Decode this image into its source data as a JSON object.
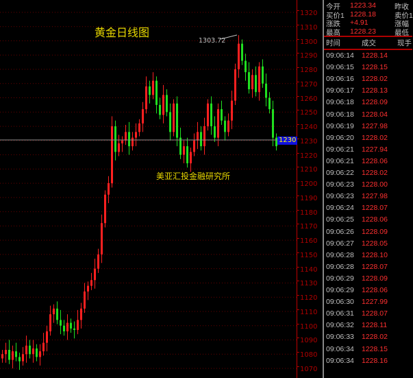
{
  "chart_data": {
    "type": "candlestick",
    "title": "黄金日线图",
    "watermark": "美亚汇投金融研究所",
    "annotation": "1303.72",
    "y_ticks": [
      1320,
      1310,
      1300,
      1290,
      1280,
      1270,
      1260,
      1250,
      1240,
      1230,
      1220,
      1210,
      1200,
      1190,
      1180,
      1170,
      1160,
      1150,
      1140,
      1130,
      1120,
      1110,
      1100,
      1090,
      1080,
      1070
    ],
    "current_price_label": "1230",
    "ylim": [
      1063,
      1328
    ],
    "grid": "horizontal dotted",
    "up_color": "#ff2020",
    "down_color": "#20e020",
    "closes": [
      1080,
      1083,
      1076,
      1082,
      1078,
      1075,
      1080,
      1086,
      1080,
      1084,
      1078,
      1082,
      1088,
      1096,
      1108,
      1112,
      1104,
      1100,
      1096,
      1102,
      1098,
      1097,
      1104,
      1112,
      1124,
      1128,
      1132,
      1140,
      1150,
      1172,
      1192,
      1200,
      1240,
      1222,
      1228,
      1230,
      1236,
      1226,
      1232,
      1236,
      1242,
      1252,
      1268,
      1262,
      1272,
      1255,
      1248,
      1262,
      1250,
      1236,
      1256,
      1232,
      1220,
      1226,
      1214,
      1222,
      1230,
      1236,
      1226,
      1240,
      1256,
      1240,
      1232,
      1252,
      1244,
      1236,
      1244,
      1258,
      1280,
      1298,
      1286,
      1278,
      1266,
      1276,
      1264,
      1282,
      1270,
      1260,
      1252,
      1232,
      1226
    ]
  },
  "quote": [
    {
      "label": "今开",
      "value": "1223.34",
      "label2": "昨收"
    },
    {
      "label": "买价1",
      "value": "1228.18",
      "label2": "卖价1"
    },
    {
      "label": "涨跌",
      "value": "+4.91",
      "label2": "涨幅"
    },
    {
      "label": "最高",
      "value": "1228.23",
      "label2": "最低"
    }
  ],
  "ticks_header": {
    "time": "时间",
    "price": "成交",
    "vol": "现手"
  },
  "ticks": [
    [
      "09:06:14",
      "1228.14"
    ],
    [
      "09:06:15",
      "1228.15"
    ],
    [
      "09:06:16",
      "1228.02"
    ],
    [
      "09:06:17",
      "1228.13"
    ],
    [
      "09:06:18",
      "1228.09"
    ],
    [
      "09:06:18",
      "1228.04"
    ],
    [
      "09:06:19",
      "1227.98"
    ],
    [
      "09:06:20",
      "1228.02"
    ],
    [
      "09:06:21",
      "1227.94"
    ],
    [
      "09:06:21",
      "1228.06"
    ],
    [
      "09:06:22",
      "1228.02"
    ],
    [
      "09:06:23",
      "1228.00"
    ],
    [
      "09:06:23",
      "1227.98"
    ],
    [
      "09:06:24",
      "1228.07"
    ],
    [
      "09:06:25",
      "1228.06"
    ],
    [
      "09:06:26",
      "1228.09"
    ],
    [
      "09:06:27",
      "1228.05"
    ],
    [
      "09:06:28",
      "1228.10"
    ],
    [
      "09:06:28",
      "1228.07"
    ],
    [
      "09:06:29",
      "1228.09"
    ],
    [
      "09:06:29",
      "1228.06"
    ],
    [
      "09:06:30",
      "1227.99"
    ],
    [
      "09:06:31",
      "1228.07"
    ],
    [
      "09:06:32",
      "1228.11"
    ],
    [
      "09:06:33",
      "1228.02"
    ],
    [
      "09:06:34",
      "1228.15"
    ],
    [
      "09:06:34",
      "1228.16"
    ]
  ]
}
